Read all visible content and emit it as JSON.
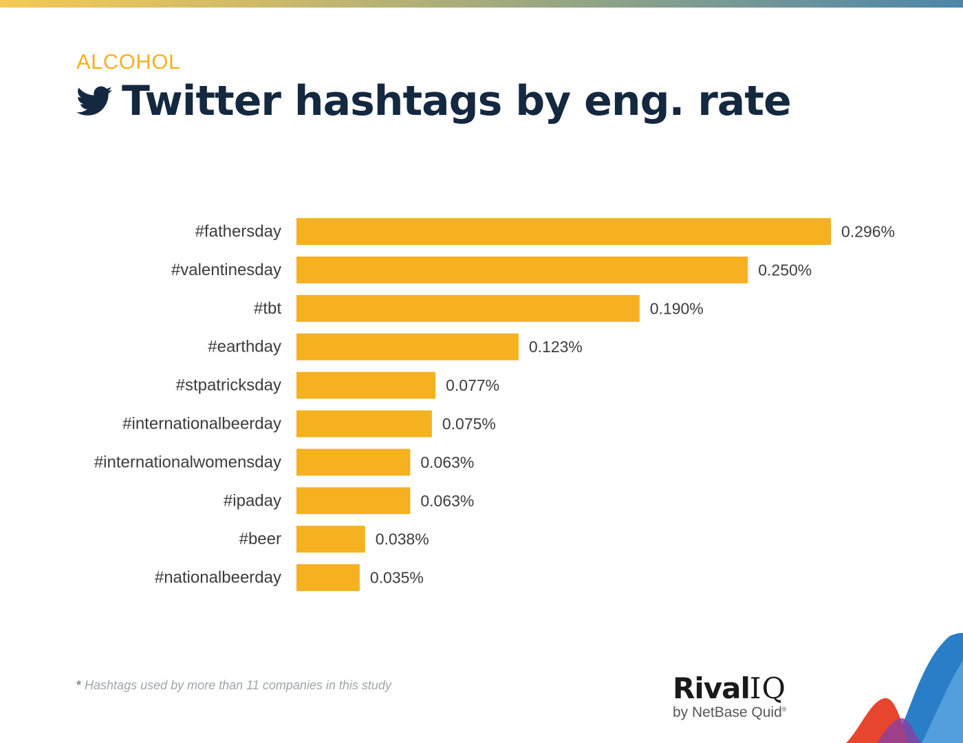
{
  "header": {
    "category": "ALCOHOL",
    "title": "Twitter hashtags by eng. rate"
  },
  "colors": {
    "bar": "#f5b120",
    "title": "#14283f",
    "category": "#f5b120",
    "label": "#3c3c3c"
  },
  "chart_data": {
    "type": "bar",
    "orientation": "horizontal",
    "categories": [
      "#fathersday",
      "#valentinesday",
      "#tbt",
      "#earthday",
      "#stpatricksday",
      "#internationalbeerday",
      "#internationalwomensday",
      "#ipaday",
      "#beer",
      "#nationalbeerday"
    ],
    "values": [
      0.296,
      0.25,
      0.19,
      0.123,
      0.077,
      0.075,
      0.063,
      0.063,
      0.038,
      0.035
    ],
    "value_labels": [
      "0.296%",
      "0.250%",
      "0.190%",
      "0.123%",
      "0.077%",
      "0.075%",
      "0.063%",
      "0.063%",
      "0.038%",
      "0.035%"
    ],
    "xlim": [
      0,
      0.296
    ],
    "grid": false,
    "legend": "none"
  },
  "footnote": {
    "mark": "*",
    "text": "Hashtags used by more than 11 companies in this study"
  },
  "logo": {
    "word": "Rival",
    "word_suffix": "IQ",
    "sub": "by NetBase Quid",
    "sub_mark": "®"
  },
  "icons": {
    "title_icon": "twitter-bird-icon"
  }
}
